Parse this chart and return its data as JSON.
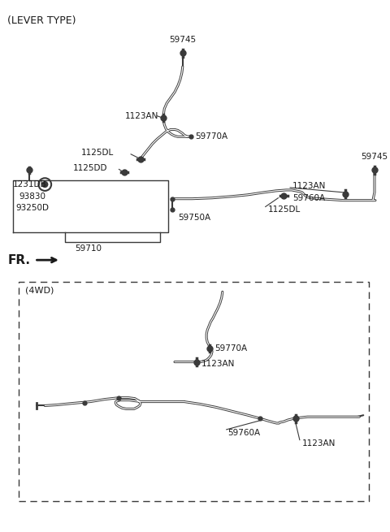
{
  "background_color": "#ffffff",
  "fig_width": 4.8,
  "fig_height": 6.55,
  "dpi": 100,
  "line_color": "#3a3a3a",
  "text_color": "#1a1a1a",
  "title": "(LEVER TYPE)",
  "fr_label": "FR.",
  "box_4wd_label": "(4WD)"
}
